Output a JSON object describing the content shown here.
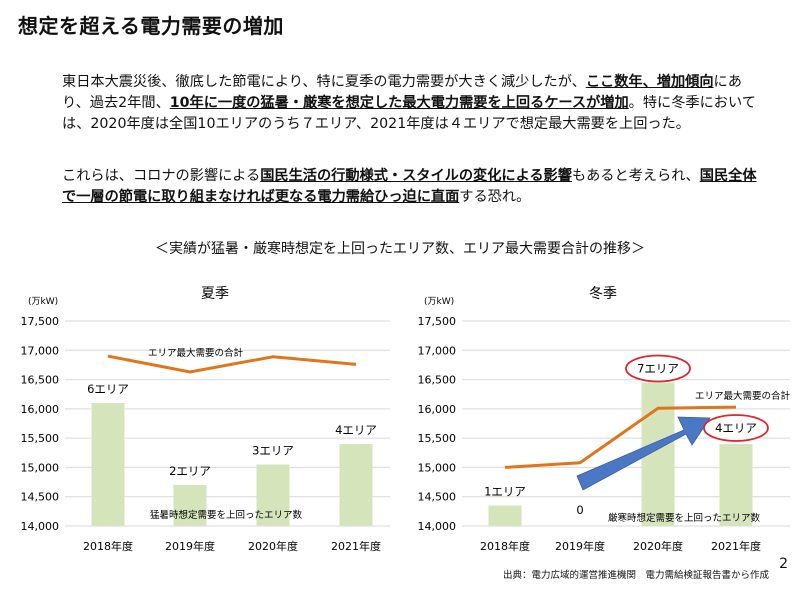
{
  "page": {
    "title": "想定を超える電力需要の増加",
    "paragraph1": [
      {
        "text": "東日本大震災後、徹底した節電により、特に夏季の電力需要が大きく減少したが、",
        "style": "plain"
      },
      {
        "text": "ここ数年、増加傾向",
        "style": "bold-underline"
      },
      {
        "text": "にあり、過去2年間、",
        "style": "plain"
      },
      {
        "text": "10年に一度の猛暑・厳寒を想定した最大電力需要を上回るケースが増加",
        "style": "bold-underline"
      },
      {
        "text": "。特に冬季においては、2020年度は全国10エリアのうち７エリア、2021年度は４エリアで想定最大需要を上回った。",
        "style": "plain"
      }
    ],
    "paragraph2": [
      {
        "text": "これらは、コロナの影響による",
        "style": "plain"
      },
      {
        "text": "国民生活の行動様式・スタイルの変化による影響",
        "style": "bold-underline"
      },
      {
        "text": "もあると考えられ、",
        "style": "plain"
      },
      {
        "text": "国民全体で一層の節電に取り組まなければ更なる電力需給ひっ迫に直面",
        "style": "bold-underline"
      },
      {
        "text": "する恐れ。",
        "style": "plain"
      }
    ],
    "chart_caption": "＜実績が猛暑・厳寒時想定を上回ったエリア数、エリア最大需要合計の推移＞",
    "source": "出典：電力広域的運営推進機関　電力需給検証報告書から作成",
    "page_number": "2"
  },
  "colors": {
    "bar": "#d6e4bc",
    "line": "#e0761c",
    "highlight": "#e0252b",
    "arrow": "#4a78c4",
    "grid": "#d9d9d9"
  },
  "chart_data": [
    {
      "type": "bar",
      "title": "夏季",
      "unit_label": "(万kW)",
      "categories": [
        "2018年度",
        "2019年度",
        "2020年度",
        "2021年度"
      ],
      "ylim": [
        14000,
        17500
      ],
      "yticks": [
        14000,
        14500,
        15000,
        15500,
        16000,
        16500,
        17000,
        17500
      ],
      "ytick_labels": [
        "14,000",
        "14,500",
        "15,000",
        "15,500",
        "16,000",
        "16,500",
        "17,000",
        "17,500"
      ],
      "bar_values": [
        16100,
        14700,
        15050,
        15400
      ],
      "bar_labels": [
        "6エリア",
        "2エリア",
        "3エリア",
        "4エリア"
      ],
      "bar_series_label": "猛暑時想定需要を上回ったエリア数",
      "line_values": [
        16900,
        16630,
        16890,
        16760
      ],
      "line_series_label": "エリア最大需要の合計",
      "grid": true
    },
    {
      "type": "bar",
      "title": "冬季",
      "unit_label": "(万kW)",
      "categories": [
        "2018年度",
        "2019年度",
        "2020年度",
        "2021年度"
      ],
      "ylim": [
        14000,
        17500
      ],
      "yticks": [
        14000,
        14500,
        15000,
        15500,
        16000,
        16500,
        17000,
        17500
      ],
      "ytick_labels": [
        "14,000",
        "14,500",
        "15,000",
        "15,500",
        "16,000",
        "16,500",
        "17,000",
        "17,500"
      ],
      "bar_values": [
        14350,
        14000,
        16450,
        15400
      ],
      "bar_labels": [
        "1エリア",
        "0",
        "7エリア",
        "4エリア"
      ],
      "highlighted_labels": [
        2,
        3
      ],
      "bar_series_label": "厳寒時想定需要を上回ったエリア数",
      "line_values": [
        15000,
        15080,
        16010,
        16030
      ],
      "line_series_label": "エリア最大需要の合計",
      "trend_arrow": true,
      "grid": true
    }
  ]
}
